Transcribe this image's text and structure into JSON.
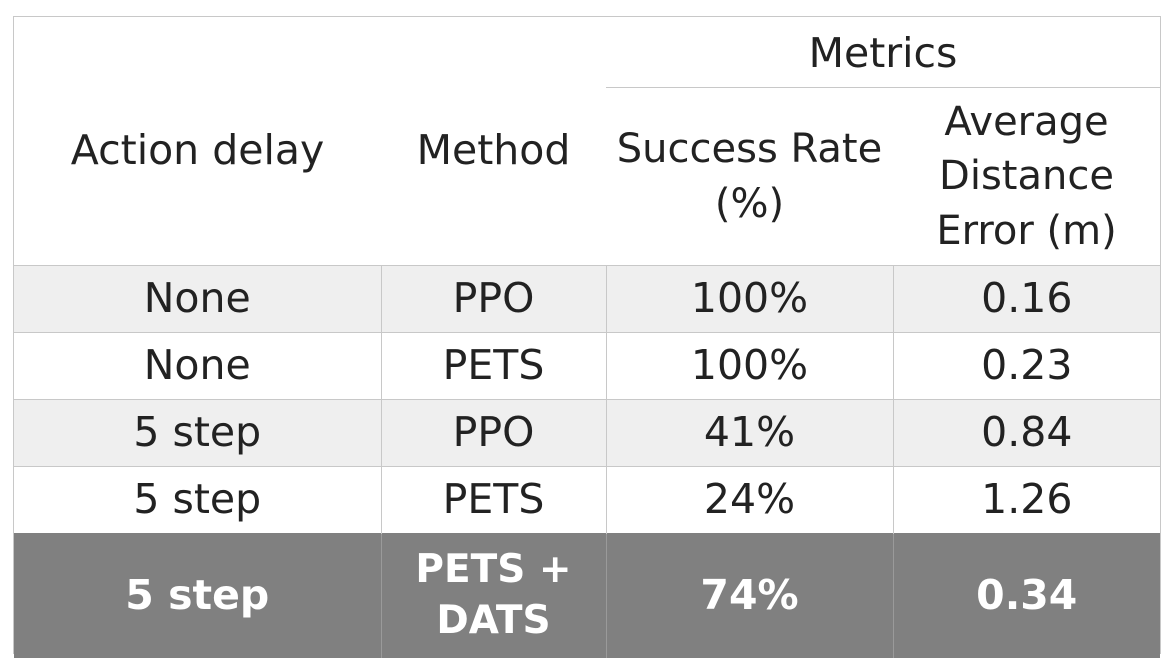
{
  "table": {
    "group_header": "Metrics",
    "columns": {
      "action_delay": "Action delay",
      "method": "Method",
      "success_rate": [
        "Success Rate",
        "(%)"
      ],
      "distance_error": [
        "Average",
        "Distance",
        "Error (m)"
      ]
    },
    "rows": [
      {
        "action_delay": "None",
        "method": "PPO",
        "success_rate": "100%",
        "distance_error": "0.16"
      },
      {
        "action_delay": "None",
        "method": "PETS",
        "success_rate": "100%",
        "distance_error": "0.23"
      },
      {
        "action_delay": "5 step",
        "method": "PPO",
        "success_rate": "41%",
        "distance_error": "0.84"
      },
      {
        "action_delay": "5 step",
        "method": "PETS",
        "success_rate": "24%",
        "distance_error": "1.26"
      }
    ],
    "highlight_row": {
      "action_delay": "5 step",
      "method": [
        "PETS +",
        "DATS"
      ],
      "success_rate": "74%",
      "distance_error": "0.34"
    },
    "colors": {
      "row_shade": "#efefef",
      "highlight_bg": "#808080",
      "highlight_text": "#ffffff",
      "grid_line": "#c8c8c8"
    }
  }
}
